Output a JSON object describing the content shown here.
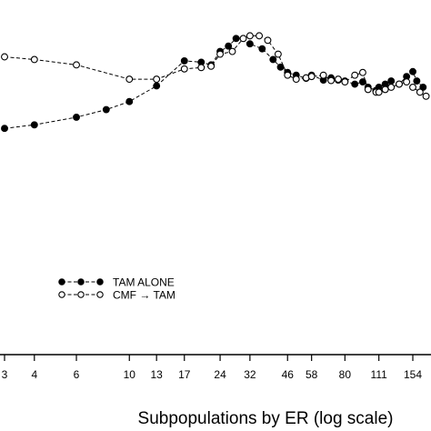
{
  "chart_data": {
    "type": "line",
    "title": "",
    "xlabel": "Subpopulations by ER (log scale)",
    "ylabel": "",
    "x_scale": "log",
    "x_ticks": [
      3,
      4,
      6,
      10,
      13,
      17,
      24,
      32,
      46,
      58,
      80,
      111,
      154
    ],
    "grid": false,
    "legend_position": "lower-left",
    "series": [
      {
        "name": "TAM ALONE",
        "marker": "filled-circle",
        "line_style": "dashed",
        "color": "#000000",
        "x": [
          3,
          4,
          6,
          8,
          10,
          13,
          17,
          20,
          22,
          24,
          26,
          28,
          32,
          36,
          40,
          43,
          46,
          50,
          55,
          58,
          65,
          70,
          75,
          80,
          88,
          95,
          100,
          108,
          111,
          118,
          125,
          135,
          145,
          154,
          160,
          170
        ],
        "y": [
          0.28,
          0.36,
          0.53,
          0.7,
          0.88,
          1.23,
          1.79,
          1.76,
          1.7,
          2.0,
          2.12,
          2.29,
          2.17,
          2.06,
          1.82,
          1.65,
          1.53,
          1.47,
          1.4,
          1.47,
          1.36,
          1.41,
          1.36,
          1.34,
          1.27,
          1.32,
          1.2,
          1.13,
          1.2,
          1.27,
          1.34,
          1.27,
          1.44,
          1.55,
          1.34,
          1.2
        ]
      },
      {
        "name": "CMF → TAM",
        "marker": "open-circle",
        "line_style": "dashed",
        "color": "#000000",
        "x": [
          3,
          4,
          6,
          10,
          13,
          17,
          20,
          22,
          24,
          27,
          30,
          32,
          35,
          38,
          42,
          46,
          50,
          55,
          58,
          65,
          70,
          75,
          80,
          88,
          95,
          100,
          108,
          111,
          118,
          125,
          135,
          145,
          154,
          165,
          175
        ],
        "y": [
          1.88,
          1.82,
          1.7,
          1.38,
          1.38,
          1.61,
          1.64,
          1.67,
          1.94,
          2.0,
          2.29,
          2.35,
          2.35,
          2.25,
          1.94,
          1.47,
          1.38,
          1.41,
          1.44,
          1.47,
          1.35,
          1.38,
          1.32,
          1.47,
          1.53,
          1.15,
          1.09,
          1.09,
          1.15,
          1.2,
          1.27,
          1.32,
          1.2,
          1.09,
          1.0
        ]
      }
    ]
  }
}
